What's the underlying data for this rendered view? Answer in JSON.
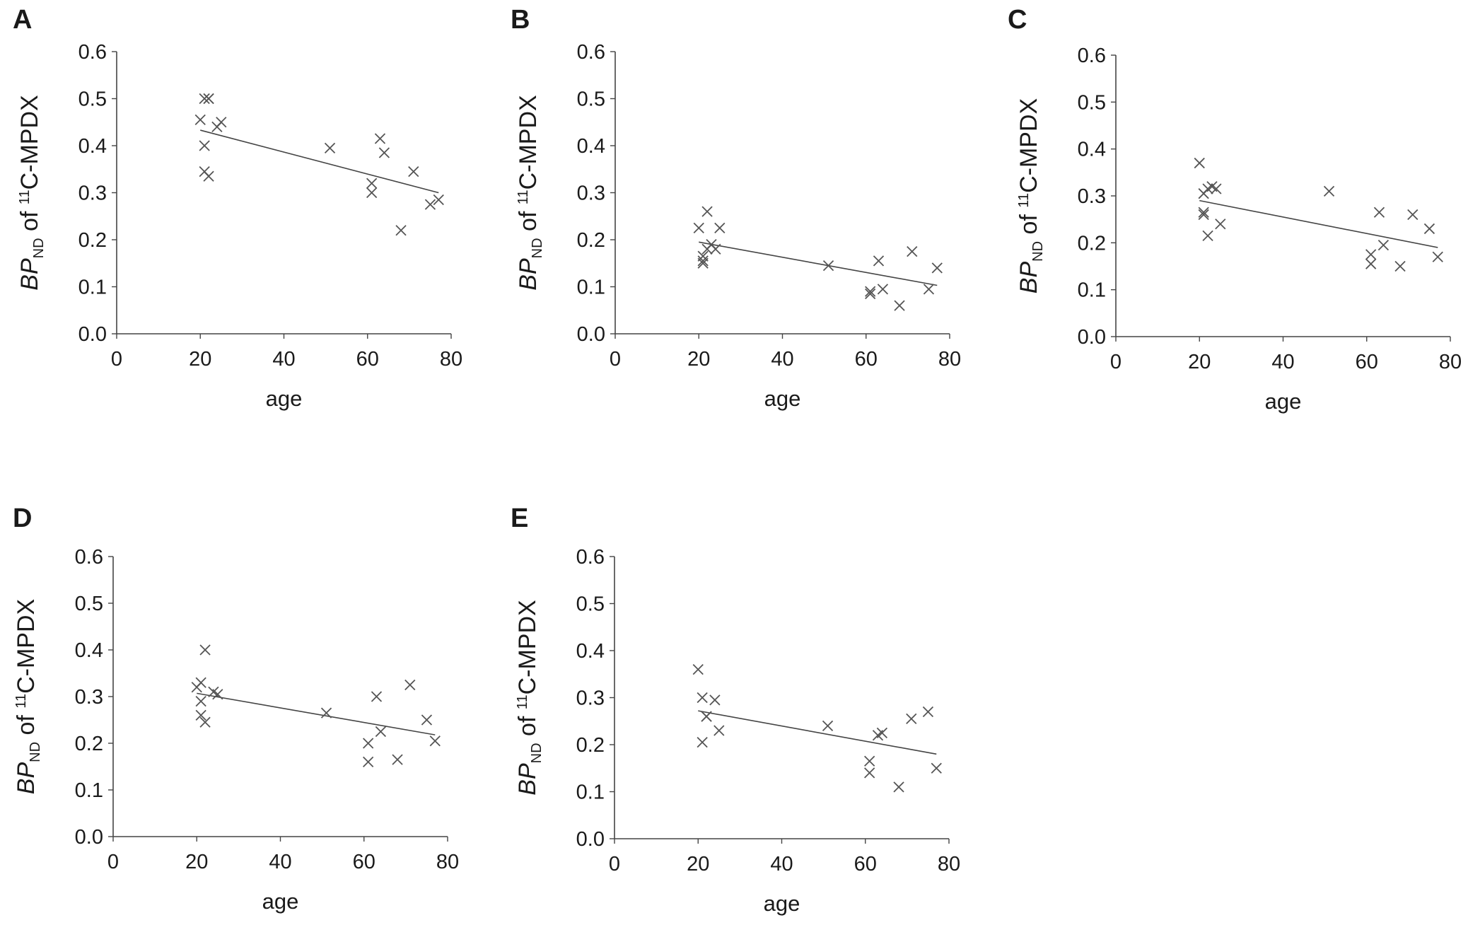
{
  "figure": {
    "shared": {
      "xlabel": "age",
      "ylabel": {
        "italic": "BP",
        "sub": "ND",
        "of": " of ",
        "sup": "11",
        "rest": "C-MPDX"
      },
      "x_ticks": [
        "0",
        "20",
        "40",
        "60",
        "80"
      ],
      "y_ticks": [
        "0.0",
        "0.1",
        "0.2",
        "0.3",
        "0.4",
        "0.5",
        "0.6"
      ]
    },
    "colors": {
      "marker": "#555555",
      "axis": "#444444",
      "trend": "#444444",
      "text": "#1a1a1a"
    }
  },
  "chart_data": [
    {
      "panel": "A",
      "type": "scatter",
      "xlabel": "age",
      "ylabel": "BPND of 11C-MPDX",
      "xlim": [
        0,
        80
      ],
      "ylim": [
        0,
        0.6
      ],
      "marker": "x",
      "x": [
        20,
        21,
        21,
        21,
        22,
        22,
        22,
        24,
        25,
        51,
        61,
        61,
        63,
        64,
        68,
        71,
        75,
        77
      ],
      "y": [
        0.455,
        0.5,
        0.4,
        0.345,
        0.5,
        0.335,
        0.5,
        0.44,
        0.45,
        0.395,
        0.32,
        0.3,
        0.415,
        0.385,
        0.22,
        0.345,
        0.275,
        0.285
      ],
      "trendline": {
        "x": [
          20,
          77
        ],
        "y": [
          0.433,
          0.3
        ]
      }
    },
    {
      "panel": "B",
      "type": "scatter",
      "xlabel": "age",
      "ylabel": "BPND of 11C-MPDX",
      "xlim": [
        0,
        80
      ],
      "ylim": [
        0,
        0.6
      ],
      "marker": "x",
      "x": [
        20,
        21,
        21,
        21,
        22,
        22,
        23,
        24,
        25,
        51,
        61,
        61,
        63,
        64,
        68,
        71,
        75,
        77
      ],
      "y": [
        0.225,
        0.165,
        0.15,
        0.155,
        0.26,
        0.18,
        0.19,
        0.18,
        0.225,
        0.145,
        0.085,
        0.09,
        0.155,
        0.095,
        0.06,
        0.175,
        0.095,
        0.14
      ],
      "trendline": {
        "x": [
          20,
          77
        ],
        "y": [
          0.195,
          0.103
        ]
      }
    },
    {
      "panel": "C",
      "type": "scatter",
      "xlabel": "age",
      "ylabel": "BPND of 11C-MPDX",
      "xlim": [
        0,
        80
      ],
      "ylim": [
        0,
        0.6
      ],
      "marker": "x",
      "x": [
        20,
        21,
        21,
        21,
        22,
        22,
        23,
        24,
        25,
        51,
        61,
        61,
        63,
        64,
        68,
        71,
        75,
        77
      ],
      "y": [
        0.37,
        0.305,
        0.26,
        0.265,
        0.315,
        0.215,
        0.32,
        0.315,
        0.24,
        0.31,
        0.175,
        0.155,
        0.265,
        0.195,
        0.15,
        0.26,
        0.23,
        0.17
      ],
      "trendline": {
        "x": [
          20,
          77
        ],
        "y": [
          0.29,
          0.19
        ]
      }
    },
    {
      "panel": "D",
      "type": "scatter",
      "xlabel": "age",
      "ylabel": "BPND of 11C-MPDX",
      "xlim": [
        0,
        80
      ],
      "ylim": [
        0,
        0.6
      ],
      "marker": "x",
      "x": [
        20,
        21,
        21,
        21,
        22,
        22,
        24,
        25,
        51,
        61,
        61,
        63,
        64,
        68,
        71,
        75,
        77
      ],
      "y": [
        0.32,
        0.33,
        0.29,
        0.26,
        0.4,
        0.245,
        0.31,
        0.305,
        0.265,
        0.2,
        0.16,
        0.3,
        0.225,
        0.165,
        0.325,
        0.25,
        0.205
      ],
      "trendline": {
        "x": [
          20,
          77
        ],
        "y": [
          0.307,
          0.218
        ]
      }
    },
    {
      "panel": "E",
      "type": "scatter",
      "xlabel": "age",
      "ylabel": "BPND of 11C-MPDX",
      "xlim": [
        0,
        80
      ],
      "ylim": [
        0,
        0.6
      ],
      "marker": "x",
      "x": [
        20,
        21,
        21,
        22,
        22,
        24,
        25,
        51,
        61,
        61,
        63,
        64,
        68,
        71,
        75,
        77
      ],
      "y": [
        0.36,
        0.3,
        0.205,
        0.26,
        0.26,
        0.295,
        0.23,
        0.24,
        0.165,
        0.14,
        0.22,
        0.225,
        0.11,
        0.255,
        0.27,
        0.15
      ],
      "trendline": {
        "x": [
          20,
          77
        ],
        "y": [
          0.272,
          0.18
        ]
      }
    }
  ]
}
